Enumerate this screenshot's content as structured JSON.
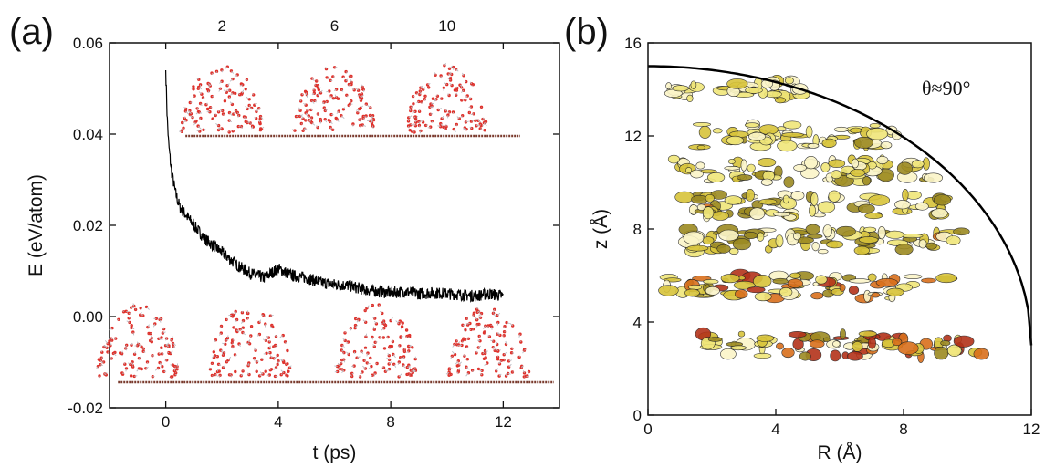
{
  "chart_data": [
    {
      "type": "line",
      "panel_label": "(a)",
      "xlabel": "t (ps)",
      "ylabel": "E (eV/atom)",
      "xlim": [
        -2,
        14
      ],
      "ylim": [
        -0.02,
        0.06
      ],
      "xticks": [
        "0",
        "4",
        "8",
        "12"
      ],
      "xtick_values": [
        0,
        4,
        8,
        12
      ],
      "yticks": [
        "-0.02",
        "0.00",
        "0.02",
        "0.04",
        "0.06"
      ],
      "ytick_values": [
        -0.02,
        0.0,
        0.02,
        0.04,
        0.06
      ],
      "top_ticks": [
        "2",
        "6",
        "10"
      ],
      "top_tick_values": [
        2,
        6,
        10
      ],
      "series": [
        {
          "color": "#000000",
          "points": [
            [
              0.0,
              0.054
            ],
            [
              0.05,
              0.044
            ],
            [
              0.1,
              0.038
            ],
            [
              0.2,
              0.032
            ],
            [
              0.35,
              0.027
            ],
            [
              0.5,
              0.024
            ],
            [
              0.75,
              0.022
            ],
            [
              1.0,
              0.02
            ],
            [
              1.4,
              0.017
            ],
            [
              1.8,
              0.015
            ],
            [
              2.2,
              0.013
            ],
            [
              2.6,
              0.011
            ],
            [
              3.0,
              0.0095
            ],
            [
              3.5,
              0.0085
            ],
            [
              4.0,
              0.0105
            ],
            [
              4.5,
              0.009
            ],
            [
              5.0,
              0.0085
            ],
            [
              5.5,
              0.0075
            ],
            [
              6.0,
              0.007
            ],
            [
              6.5,
              0.0068
            ],
            [
              7.0,
              0.006
            ],
            [
              7.5,
              0.0055
            ],
            [
              8.0,
              0.0052
            ],
            [
              8.5,
              0.0055
            ],
            [
              9.0,
              0.005
            ],
            [
              9.5,
              0.0052
            ],
            [
              10.0,
              0.005
            ],
            [
              10.5,
              0.0048
            ],
            [
              11.0,
              0.0045
            ],
            [
              11.5,
              0.005
            ],
            [
              12.0,
              0.0045
            ]
          ]
        }
      ],
      "snapshots": [
        {
          "t": 2,
          "row": "top"
        },
        {
          "t": 6,
          "row": "top"
        },
        {
          "t": 10,
          "row": "top"
        },
        {
          "t": -1,
          "row": "bottom"
        },
        {
          "t": 3,
          "row": "bottom"
        },
        {
          "t": 7.5,
          "row": "bottom"
        },
        {
          "t": 11.5,
          "row": "bottom"
        }
      ]
    },
    {
      "type": "heatmap",
      "panel_label": "(b)",
      "xlabel": "R (Å)",
      "ylabel": "z (Å)",
      "xlim": [
        0,
        12
      ],
      "ylim": [
        0,
        16
      ],
      "xticks": [
        "0",
        "4",
        "8",
        "12"
      ],
      "xtick_values": [
        0,
        4,
        8,
        12
      ],
      "yticks": [
        "0",
        "4",
        "8",
        "12",
        "16"
      ],
      "ytick_values": [
        0,
        4,
        8,
        12,
        16
      ],
      "annotation": "θ≈90°",
      "arc": {
        "R": 12,
        "z0": 3,
        "zmax": 15
      },
      "bands": [
        {
          "z": 3.0,
          "r0": 1.5,
          "r1": 10.5,
          "intensity": 0.95
        },
        {
          "z": 5.5,
          "r0": 0.5,
          "r1": 9.5,
          "intensity": 0.8
        },
        {
          "z": 7.5,
          "r0": 1.0,
          "r1": 10.0,
          "intensity": 0.6
        },
        {
          "z": 9.0,
          "r0": 1.0,
          "r1": 9.5,
          "intensity": 0.6
        },
        {
          "z": 10.5,
          "r0": 0.8,
          "r1": 9.0,
          "intensity": 0.5
        },
        {
          "z": 12.0,
          "r0": 1.5,
          "r1": 8.0,
          "intensity": 0.45
        },
        {
          "z": 14.0,
          "r0": 0.5,
          "r1": 5.0,
          "intensity": 0.3
        }
      ]
    }
  ]
}
